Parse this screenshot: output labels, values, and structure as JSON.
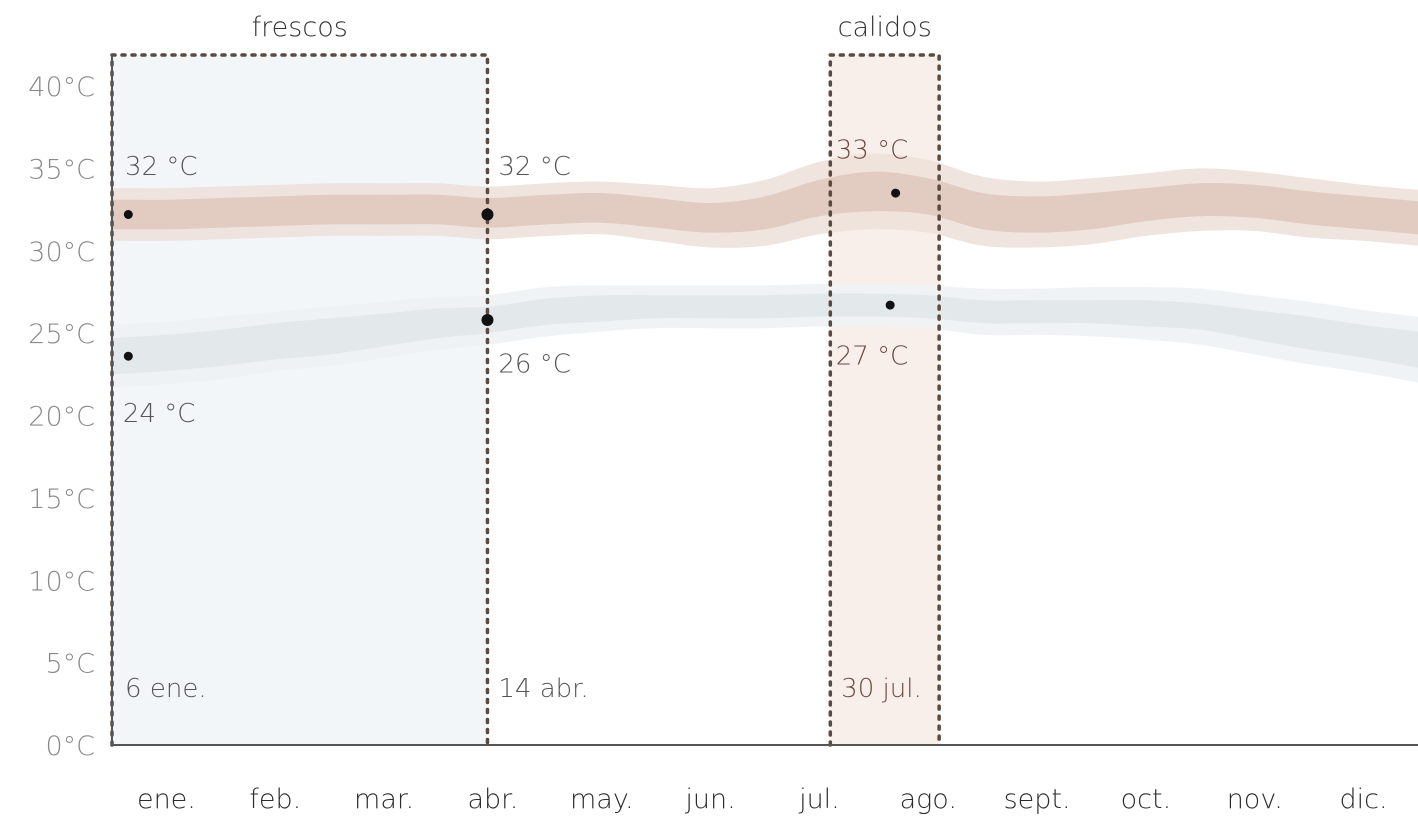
{
  "colors": {
    "high_outer": "#ede1da",
    "high_inner": "#e0c8bd",
    "low_outer": "#eef2f4",
    "low_inner": "#e1e8ea",
    "cool_shade": "#f3f6f8",
    "warm_shade": "#f8efea",
    "boundary": "#5b4a40",
    "axis": "#555555",
    "dot": "#111111"
  },
  "chart_data": {
    "type": "area",
    "ylim": [
      0,
      40
    ],
    "yticks": [
      0,
      5,
      10,
      15,
      20,
      25,
      30,
      35,
      40
    ],
    "ytick_labels": [
      "0°C",
      "5°C",
      "10°C",
      "15°C",
      "20°C",
      "25°C",
      "30°C",
      "35°C",
      "40°C"
    ],
    "xlim": [
      0,
      12
    ],
    "categories": [
      "ene.",
      "feb.",
      "mar.",
      "abr.",
      "may.",
      "jun.",
      "jul.",
      "ago.",
      "sept.",
      "oct.",
      "nov.",
      "dic."
    ],
    "seasons": [
      {
        "label": "frescos",
        "start": 0,
        "end": 3.45
      },
      {
        "label": "calidos",
        "start": 6.6,
        "end": 7.6
      }
    ],
    "series": [
      {
        "key": "high",
        "x": [
          0,
          0.5,
          1,
          1.5,
          2,
          2.5,
          3,
          3.45,
          4,
          4.5,
          5,
          5.5,
          6,
          6.5,
          7,
          7.5,
          8,
          8.5,
          9,
          9.5,
          10,
          10.5,
          11,
          11.5,
          12
        ],
        "values": [
          32.2,
          32.2,
          32.3,
          32.4,
          32.5,
          32.5,
          32.5,
          32.3,
          32.5,
          32.6,
          32.3,
          32.0,
          32.3,
          33.2,
          33.6,
          33.3,
          32.4,
          32.2,
          32.4,
          32.8,
          33.1,
          33.0,
          32.6,
          32.3,
          32.0
        ],
        "inner_half": [
          0.9,
          0.9,
          0.9,
          0.9,
          0.9,
          0.9,
          0.9,
          0.9,
          0.9,
          0.9,
          0.9,
          0.9,
          1.0,
          1.1,
          1.2,
          1.1,
          1.1,
          1.1,
          1.1,
          1.0,
          1.0,
          1.0,
          1.0,
          1.0,
          1.0
        ],
        "outer_half": [
          1.6,
          1.6,
          1.6,
          1.6,
          1.6,
          1.6,
          1.6,
          1.6,
          1.6,
          1.6,
          1.7,
          1.8,
          2.0,
          2.2,
          2.3,
          2.2,
          2.1,
          2.0,
          2.0,
          1.9,
          1.9,
          1.8,
          1.8,
          1.7,
          1.7
        ]
      },
      {
        "key": "low",
        "x": [
          0,
          0.5,
          1,
          1.5,
          2,
          2.5,
          3,
          3.45,
          4,
          4.5,
          5,
          5.5,
          6,
          6.5,
          7,
          7.5,
          8,
          8.5,
          9,
          9.5,
          10,
          10.5,
          11,
          11.5,
          12
        ],
        "values": [
          23.6,
          23.8,
          24.1,
          24.5,
          24.8,
          25.2,
          25.6,
          25.8,
          26.3,
          26.5,
          26.6,
          26.6,
          26.6,
          26.7,
          26.7,
          26.6,
          26.3,
          26.3,
          26.3,
          26.2,
          26.0,
          25.5,
          25.0,
          24.5,
          24.0
        ],
        "inner_half": [
          1.1,
          1.1,
          1.1,
          1.1,
          1.1,
          1.0,
          0.9,
          0.8,
          0.8,
          0.8,
          0.7,
          0.7,
          0.7,
          0.7,
          0.7,
          0.7,
          0.7,
          0.7,
          0.7,
          0.8,
          0.8,
          0.9,
          1.0,
          1.0,
          1.1
        ],
        "outer_half": [
          1.9,
          1.9,
          1.9,
          1.8,
          1.8,
          1.7,
          1.6,
          1.5,
          1.5,
          1.4,
          1.3,
          1.3,
          1.3,
          1.3,
          1.3,
          1.3,
          1.4,
          1.4,
          1.5,
          1.6,
          1.7,
          1.8,
          1.9,
          1.9,
          2.0
        ]
      }
    ],
    "points": [
      {
        "x": 0.15,
        "y": 32.2,
        "r": "small"
      },
      {
        "x": 0.15,
        "y": 23.6,
        "r": "small"
      },
      {
        "x": 3.45,
        "y": 32.2,
        "r": "large"
      },
      {
        "x": 3.45,
        "y": 25.8,
        "r": "large"
      },
      {
        "x": 7.2,
        "y": 33.5,
        "r": "small"
      },
      {
        "x": 7.15,
        "y": 26.7,
        "r": "small"
      }
    ],
    "annotations": [
      {
        "text": "32 °C",
        "x": 0.12,
        "y": 34.6,
        "warm": false
      },
      {
        "text": "24 °C",
        "x": 0.1,
        "y": 19.6,
        "warm": false
      },
      {
        "text": "6 ene.",
        "x": 0.12,
        "y": 2.9,
        "warm": false
      },
      {
        "text": "32 °C",
        "x": 3.55,
        "y": 34.6,
        "warm": false
      },
      {
        "text": "26 °C",
        "x": 3.55,
        "y": 22.6,
        "warm": false
      },
      {
        "text": "14 abr.",
        "x": 3.55,
        "y": 2.9,
        "warm": false
      },
      {
        "text": "33 °C",
        "x": 6.65,
        "y": 35.6,
        "warm": true
      },
      {
        "text": "27 °C",
        "x": 6.65,
        "y": 23.1,
        "warm": true
      },
      {
        "text": "30 jul.",
        "x": 6.7,
        "y": 2.9,
        "warm": true
      }
    ]
  }
}
